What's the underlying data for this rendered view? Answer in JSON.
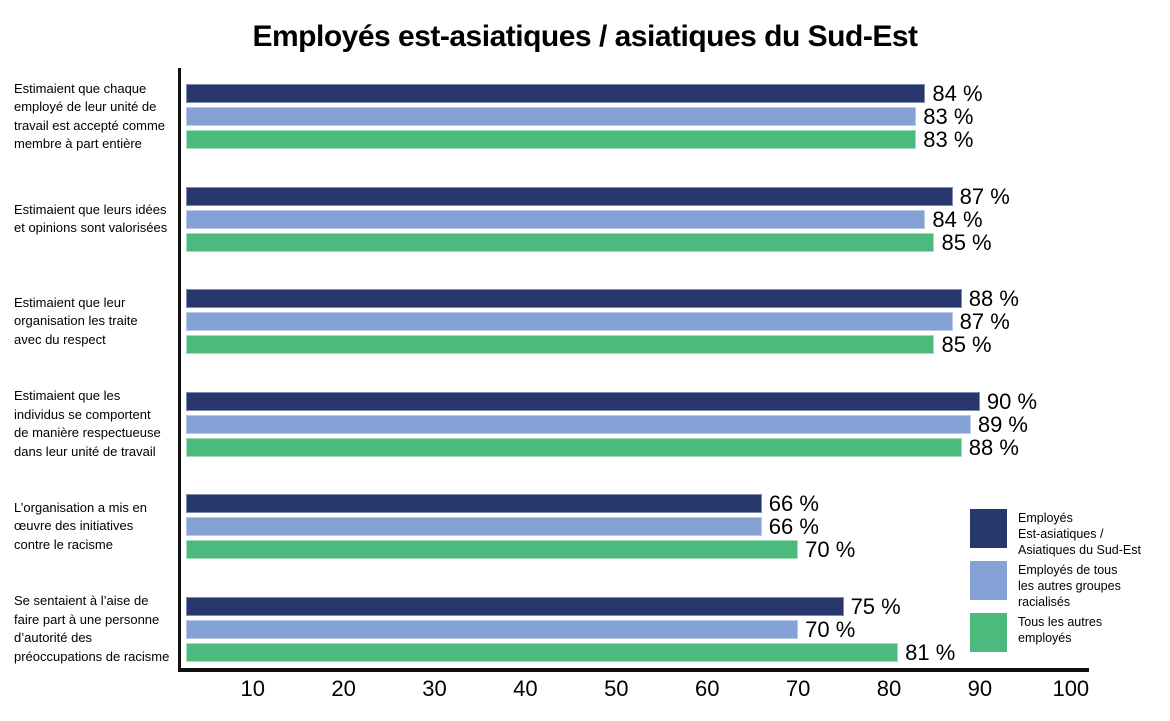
{
  "chart_data": {
    "type": "bar",
    "orientation": "horizontal",
    "title": "Employés est-asiatiques / asiatiques du Sud-Est",
    "categories": [
      "Estimaient que chaque\nemployé de leur unité de\ntravail est accepté comme\nmembre à part entière",
      "Estimaient que leurs idées\net opinions sont valorisées",
      "Estimaient que leur\norganisation les traite\navec du respect",
      "Estimaient que les\nindividus se comportent\nde manière respectueuse\ndans leur unité de travail",
      "L’organisation a mis en\nœuvre des initiatives\ncontre le racisme",
      "Se sentaient à l’aise de\nfaire part à une personne\nd’autorité des\npréoccupations de racisme"
    ],
    "series": [
      {
        "name": "Employés\nEst-asiatiques /\nAsiatiques du Sud-Est",
        "color": "#27366B",
        "values": [
          84,
          87,
          88,
          90,
          66,
          75
        ]
      },
      {
        "name": "Employés de tous\nles autres groupes\nracialisés",
        "color": "#84A2D6",
        "values": [
          83,
          84,
          87,
          89,
          66,
          70
        ]
      },
      {
        "name": "Tous les autres\nemployés",
        "color": "#4CB97D",
        "values": [
          83,
          85,
          85,
          88,
          70,
          81
        ]
      }
    ],
    "x_ticks": [
      10,
      20,
      30,
      40,
      50,
      60,
      70,
      80,
      90,
      100
    ],
    "xlim": [
      2,
      102
    ],
    "value_suffix": " %",
    "grid": false,
    "legend_position": "bottom-right",
    "axis_color": "#111111",
    "text_color": "#000000",
    "background_color": "#ffffff"
  }
}
